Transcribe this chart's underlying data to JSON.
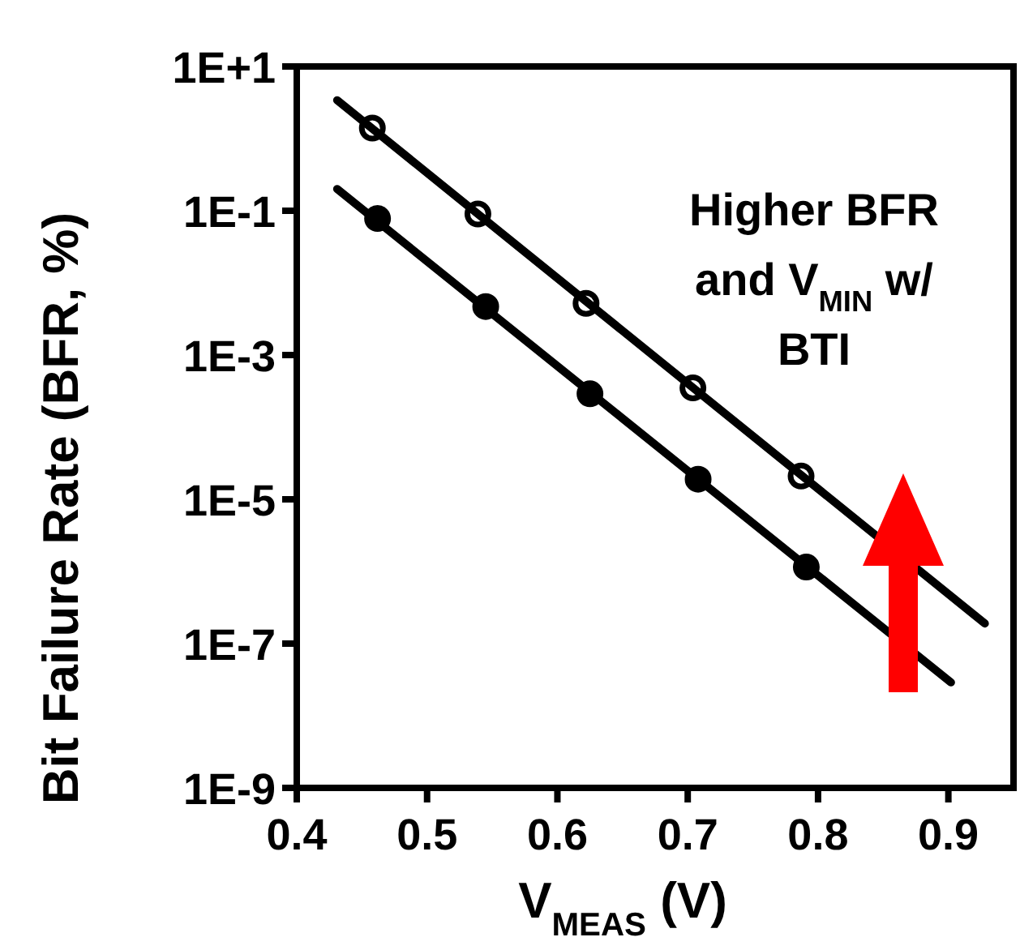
{
  "chart_data": {
    "type": "scatter",
    "xlabel": "V$_{MEAS}$ (V)",
    "ylabel": "Bit Failure Rate (BFR, %)",
    "annotations": [
      "Higher BFR and V$_{MIN}$ w/ BTI"
    ],
    "series": [
      {
        "color": "#ffffff",
        "marker": "circle",
        "x": [
          0.458,
          0.539,
          0.622,
          0.704,
          0.787
        ],
        "values": [
          1.4,
          0.09,
          0.0052,
          0.00035,
          2.1e-05
        ]
      },
      {
        "color": "#000000",
        "marker": "circle",
        "x": [
          0.462,
          0.545,
          0.625,
          0.708,
          0.791
        ],
        "values": [
          0.078,
          0.0047,
          0.00029,
          1.9e-05,
          1.15e-06
        ]
      },
      {
        "type": "line",
        "color": "#000000",
        "x": [
          0.431,
          0.928
        ],
        "values": [
          3.4,
          1.9e-07
        ]
      },
      {
        "type": "line",
        "color": "#000000",
        "x": [
          0.431,
          0.902
        ],
        "values": [
          0.2,
          2.9e-08
        ]
      }
    ],
    "log": "y",
    "xlim": [
      0.4,
      0.95
    ],
    "xticks": [
      0.4,
      0.5,
      0.6,
      0.7,
      0.8,
      0.9
    ],
    "ylim": [
      1e-09,
      10
    ],
    "yticks": [
      {
        "value": 10,
        "label": "1E+1"
      },
      {
        "value": 0.1,
        "label": "1E-1"
      },
      {
        "value": 0.001,
        "label": "1E-3"
      },
      {
        "value": 1e-05,
        "label": "1E-5"
      },
      {
        "value": 1e-07,
        "label": "1E-7"
      },
      {
        "value": 1e-09,
        "label": "1E-9"
      }
    ],
    "grid": false
  }
}
